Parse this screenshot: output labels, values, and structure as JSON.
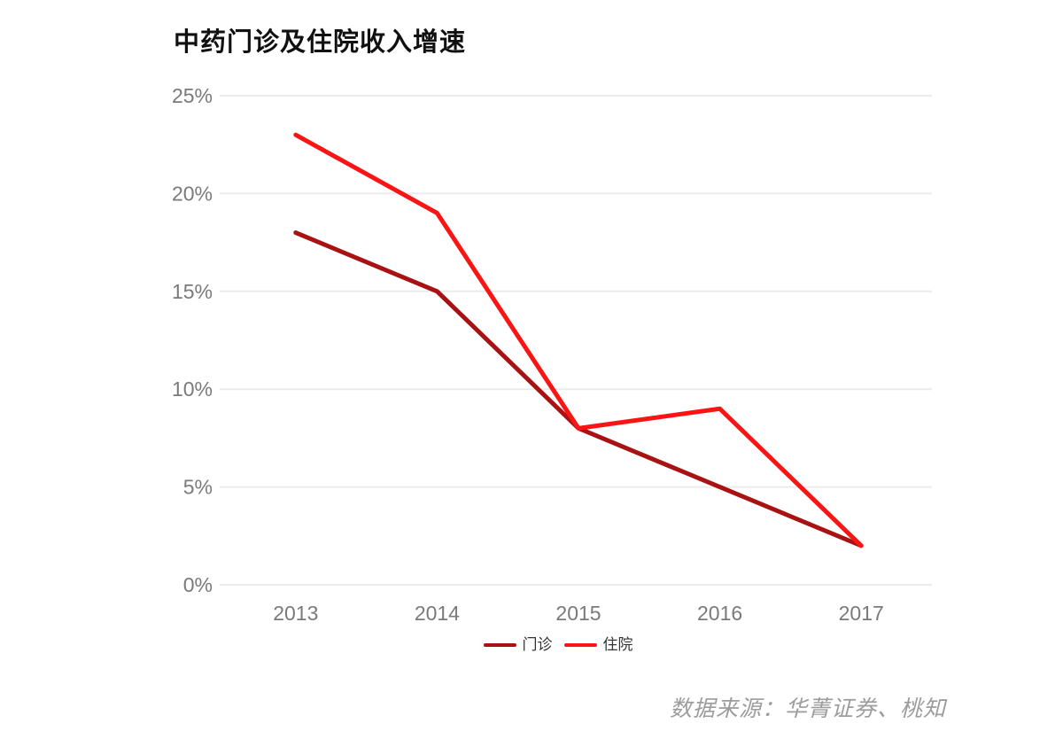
{
  "title": "中药门诊及住院收入增速",
  "source": "数据来源：华菁证券、桃知",
  "chart_data": {
    "type": "line",
    "title": "中药门诊及住院收入增速",
    "categories": [
      "2013",
      "2014",
      "2015",
      "2016",
      "2017"
    ],
    "series": [
      {
        "name": "门诊",
        "values": [
          18,
          15,
          8,
          5,
          2
        ],
        "color": "#a81212"
      },
      {
        "name": "住院",
        "values": [
          23,
          19,
          8,
          9,
          2
        ],
        "color": "#fa1414"
      }
    ],
    "xlabel": "",
    "ylabel": "",
    "ylim": [
      0,
      25
    ],
    "ytick_step": 5,
    "ytick_format": "{v}%",
    "grid": true,
    "gridline_color": "#ebebeb",
    "axis_label_color": "#7a7a7a",
    "legend_position": "bottom",
    "source_note": "数据来源：华菁证券、桃知"
  }
}
